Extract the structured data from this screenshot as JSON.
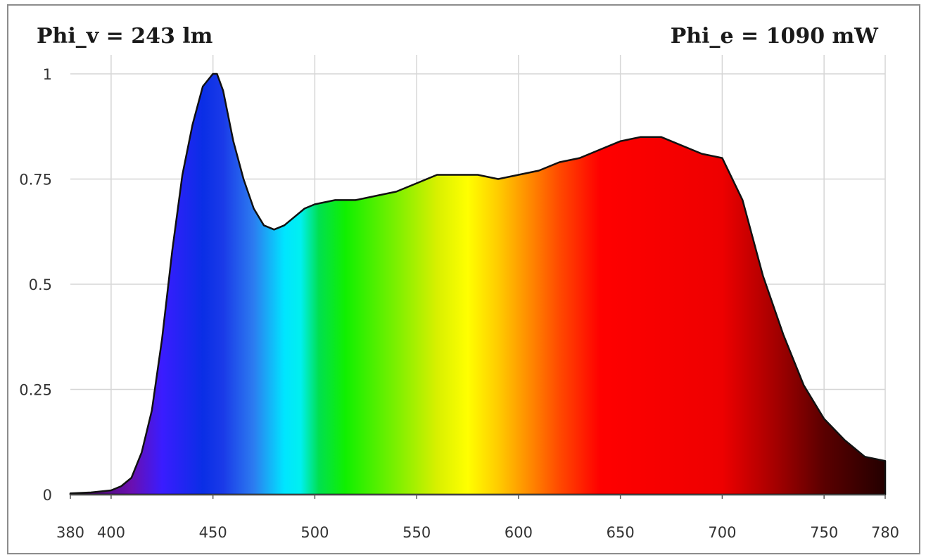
{
  "header": {
    "luminous_flux": "Phi_v = 243 lm",
    "radiant_flux": "Phi_e = 1090 mW"
  },
  "chart_data": {
    "type": "area",
    "title": "",
    "xlabel": "",
    "ylabel": "",
    "xlim": [
      380,
      780
    ],
    "ylim": [
      0,
      1
    ],
    "grid": true,
    "fill": "visible-spectrum wavelength color gradient",
    "x_ticks": [
      380,
      400,
      450,
      500,
      550,
      600,
      650,
      700,
      750,
      780
    ],
    "x_tick_labels": [
      "380",
      "400",
      "450",
      "500",
      "550",
      "600",
      "650",
      "700",
      "750",
      "780"
    ],
    "y_ticks": [
      0,
      0.25,
      0.5,
      0.75,
      1
    ],
    "y_tick_labels": [
      "0",
      "0.25",
      "0.5",
      "0.75",
      "1"
    ],
    "series": [
      {
        "x": [
          380,
          390,
          400,
          405,
          410,
          415,
          420,
          425,
          430,
          435,
          440,
          445,
          450,
          452,
          455,
          460,
          465,
          470,
          475,
          480,
          485,
          490,
          495,
          500,
          510,
          520,
          530,
          540,
          550,
          560,
          570,
          580,
          590,
          600,
          610,
          620,
          630,
          640,
          650,
          660,
          670,
          680,
          690,
          700,
          710,
          720,
          730,
          740,
          750,
          760,
          770,
          780
        ],
        "y": [
          0.003,
          0.005,
          0.01,
          0.02,
          0.04,
          0.1,
          0.2,
          0.37,
          0.58,
          0.76,
          0.88,
          0.97,
          1.0,
          1.0,
          0.96,
          0.84,
          0.75,
          0.68,
          0.64,
          0.63,
          0.64,
          0.66,
          0.68,
          0.69,
          0.7,
          0.7,
          0.71,
          0.72,
          0.74,
          0.76,
          0.76,
          0.76,
          0.75,
          0.76,
          0.77,
          0.79,
          0.8,
          0.82,
          0.84,
          0.85,
          0.85,
          0.83,
          0.81,
          0.8,
          0.7,
          0.52,
          0.38,
          0.26,
          0.18,
          0.13,
          0.09,
          0.08
        ]
      }
    ]
  }
}
